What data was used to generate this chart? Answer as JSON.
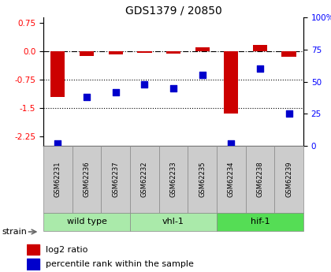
{
  "title": "GDS1379 / 20850",
  "samples": [
    "GSM62231",
    "GSM62236",
    "GSM62237",
    "GSM62232",
    "GSM62233",
    "GSM62235",
    "GSM62234",
    "GSM62238",
    "GSM62239"
  ],
  "log2_ratio": [
    -1.2,
    -0.12,
    -0.08,
    -0.04,
    -0.05,
    0.1,
    -1.65,
    0.18,
    -0.15
  ],
  "percentile_rank": [
    2,
    38,
    42,
    48,
    45,
    55,
    2,
    60,
    25
  ],
  "groups": [
    {
      "label": "wild type",
      "start": 0,
      "end": 3,
      "color": "#aaeaaa"
    },
    {
      "label": "vhl-1",
      "start": 3,
      "end": 6,
      "color": "#aaeaaa"
    },
    {
      "label": "hif-1",
      "start": 6,
      "end": 9,
      "color": "#55dd55"
    }
  ],
  "ylim_left": [
    -2.5,
    0.9
  ],
  "ylim_right": [
    0,
    100
  ],
  "yticks_left": [
    0.75,
    0.0,
    -0.75,
    -1.5,
    -2.25
  ],
  "yticks_right": [
    100,
    75,
    50,
    25,
    0
  ],
  "hline_y": 0,
  "dotted_lines": [
    -0.75,
    -1.5
  ],
  "bar_color": "#cc0000",
  "scatter_color": "#0000cc",
  "bar_width": 0.5,
  "scatter_size": 40,
  "legend_items": [
    {
      "label": "log2 ratio",
      "color": "#cc0000"
    },
    {
      "label": "percentile rank within the sample",
      "color": "#0000cc"
    }
  ],
  "strain_label": "strain",
  "sample_box_color": "#cccccc",
  "fig_bg": "#ffffff"
}
